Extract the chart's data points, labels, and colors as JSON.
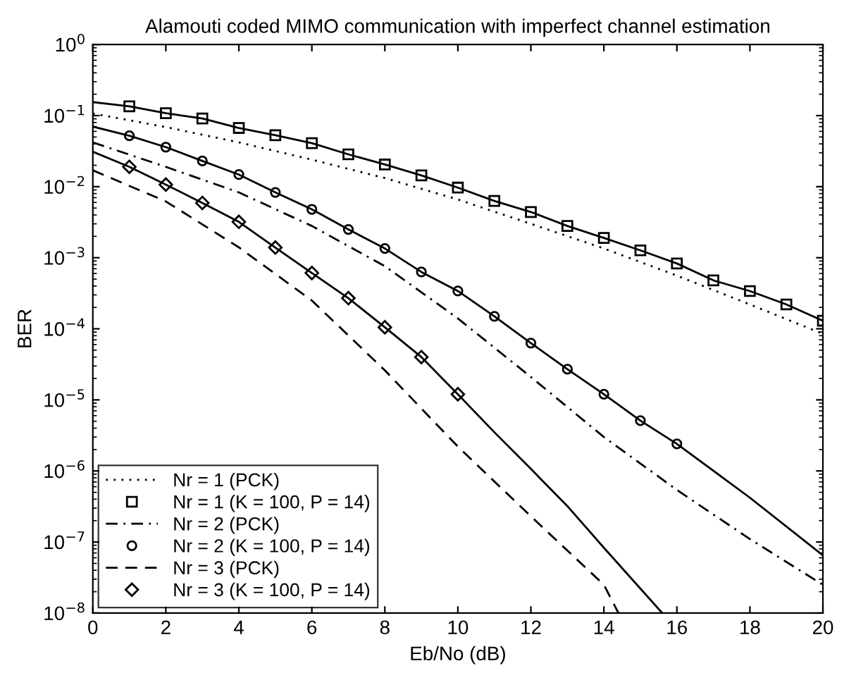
{
  "chart_data": {
    "type": "line",
    "title": "Alamouti coded MIMO communication with imperfect channel estimation",
    "xlabel": "Eb/No (dB)",
    "ylabel": "BER",
    "log": "y",
    "xlim": [
      0,
      20
    ],
    "xticks": [
      0,
      2,
      4,
      6,
      8,
      10,
      12,
      14,
      16,
      18,
      20
    ],
    "ylim": [
      1e-08,
      1
    ],
    "yticks": [
      {
        "value": 1,
        "label": "10$^{0}$"
      },
      {
        "value": 0.1,
        "label": "10$^{−1}$"
      },
      {
        "value": 0.01,
        "label": "10$^{−2}$"
      },
      {
        "value": 0.001,
        "label": "10$^{−3}$"
      },
      {
        "value": 0.0001,
        "label": "10$^{−4}$"
      },
      {
        "value": 1e-05,
        "label": "10$^{−5}$"
      },
      {
        "value": 1e-06,
        "label": "10$^{−6}$"
      },
      {
        "value": 1e-07,
        "label": "10$^{−7}$"
      },
      {
        "value": 1e-08,
        "label": "10$^{−8}$"
      }
    ],
    "grid": false,
    "legend": "bottom left",
    "series": [
      {
        "name": "Nr = 1 (PCK)",
        "line_style": "dotted",
        "marker": "none",
        "color": "#000000",
        "x": [
          0,
          2,
          4,
          6,
          8,
          10,
          12,
          14,
          16,
          18,
          20
        ],
        "values": [
          0.107,
          0.069,
          0.042,
          0.024,
          0.0132,
          0.0066,
          0.003,
          0.00135,
          0.00056,
          0.00022,
          8.5e-05
        ]
      },
      {
        "name": "Nr = 1 (K = 100, P = 14)",
        "type": "scatter",
        "marker": "square",
        "color": "#000000",
        "x": [
          1,
          2,
          3,
          4,
          5,
          6,
          7,
          8,
          9,
          10,
          11,
          12,
          13,
          14,
          15,
          16,
          17,
          18,
          19,
          20
        ],
        "values": [
          0.135,
          0.108,
          0.091,
          0.067,
          0.053,
          0.041,
          0.0285,
          0.0205,
          0.0144,
          0.0097,
          0.0063,
          0.0044,
          0.0028,
          0.0019,
          0.00127,
          0.00083,
          0.00048,
          0.00034,
          0.00022,
          0.00013
        ]
      },
      {
        "name": "Nr = 2 (PCK)",
        "line_style": "dashdot",
        "marker": "none",
        "color": "#000000",
        "x": [
          0,
          2,
          4,
          6,
          8,
          10,
          12,
          14,
          16,
          18,
          20
        ],
        "values": [
          0.042,
          0.019,
          0.0083,
          0.0028,
          0.00076,
          0.00014,
          2.1e-05,
          3e-06,
          5.4e-07,
          1.1e-07,
          2.5e-08
        ]
      },
      {
        "name": "Nr = 2 (K = 100, P = 14)",
        "type": "scatter",
        "marker": "circle",
        "color": "#000000",
        "x": [
          1,
          2,
          3,
          4,
          5,
          6,
          7,
          8,
          9,
          10,
          11,
          12,
          13,
          14,
          15,
          16
        ],
        "values": [
          0.052,
          0.036,
          0.023,
          0.0148,
          0.0083,
          0.0048,
          0.0025,
          0.00135,
          0.00063,
          0.00034,
          0.00015,
          6.3e-05,
          2.7e-05,
          1.2e-05,
          5.1e-06,
          2.4e-06
        ]
      },
      {
        "name": "Nr = 3 (PCK)",
        "line_style": "dashed",
        "marker": "none",
        "color": "#000000",
        "x": [
          0,
          2,
          4,
          6,
          8,
          10,
          12,
          14,
          14.4
        ],
        "values": [
          0.017,
          0.0062,
          0.0014,
          0.00025,
          2.6e-05,
          2.2e-06,
          2.3e-07,
          2.5e-08,
          1e-08
        ]
      },
      {
        "name": "Nr = 3 (K = 100, P = 14)",
        "type": "scatter",
        "marker": "diamond",
        "color": "#000000",
        "x": [
          1,
          2,
          3,
          4,
          5,
          6,
          7,
          8,
          9,
          10
        ],
        "values": [
          0.019,
          0.0107,
          0.0059,
          0.0032,
          0.00139,
          0.00061,
          0.00027,
          0.000105,
          4e-05,
          1.2e-05
        ]
      },
      {
        "line_style": "solid",
        "marker": "none",
        "color": "#000000",
        "x": [
          0,
          1,
          2,
          3,
          4,
          5,
          6,
          7,
          8,
          9,
          10,
          11,
          12,
          13,
          14,
          15,
          16,
          17,
          18,
          19,
          20
        ],
        "values": [
          0.155,
          0.135,
          0.108,
          0.091,
          0.067,
          0.053,
          0.041,
          0.0285,
          0.0205,
          0.0144,
          0.0097,
          0.0063,
          0.0044,
          0.0028,
          0.0019,
          0.00127,
          0.00083,
          0.00048,
          0.00034,
          0.00022,
          0.00013
        ]
      },
      {
        "line_style": "solid",
        "marker": "none",
        "color": "#000000",
        "x": [
          0,
          1,
          2,
          3,
          4,
          5,
          6,
          7,
          8,
          9,
          10,
          11,
          12,
          13,
          14,
          15,
          16,
          18,
          20
        ],
        "values": [
          0.07,
          0.052,
          0.036,
          0.023,
          0.0148,
          0.0083,
          0.0048,
          0.0025,
          0.00135,
          0.00063,
          0.00034,
          0.00015,
          6.3e-05,
          2.7e-05,
          1.2e-05,
          5.1e-06,
          2.4e-06,
          4.2e-07,
          6.5e-08
        ]
      },
      {
        "line_style": "solid",
        "marker": "none",
        "color": "#000000",
        "x": [
          0,
          1,
          2,
          3,
          4,
          5,
          6,
          7,
          8,
          9,
          10,
          11,
          12,
          13,
          14,
          15.6
        ],
        "values": [
          0.031,
          0.019,
          0.0107,
          0.0059,
          0.0032,
          0.00139,
          0.00061,
          0.00027,
          0.000105,
          4e-05,
          1.2e-05,
          3.5e-06,
          1.07e-06,
          3.2e-07,
          8.3e-08,
          1e-08
        ]
      }
    ]
  }
}
